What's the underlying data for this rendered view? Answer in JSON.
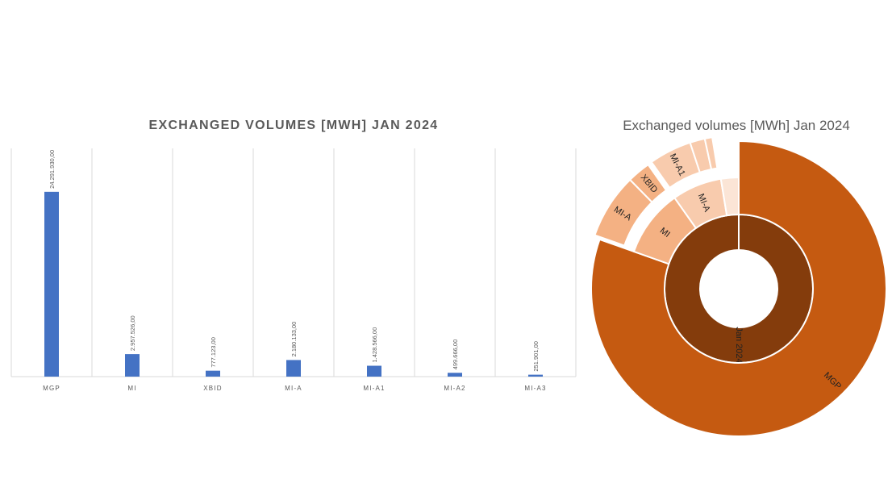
{
  "chart_data": [
    {
      "type": "bar",
      "title": "EXCHANGED VOLUMES [MWH] JAN 2024",
      "categories": [
        "MGP",
        "MI",
        "XBID",
        "MI-A",
        "MI-A1",
        "MI-A2",
        "MI-A3"
      ],
      "values": [
        24291930,
        2957526,
        777123,
        2180133,
        1428566,
        499666,
        251901
      ],
      "value_labels": [
        "24.291.930,00",
        "2.957.526,00",
        "777.123,00",
        "2.180.133,00",
        "1.428.566,00",
        "499.666,00",
        "251.901,00"
      ],
      "ylim": [
        0,
        30000000
      ],
      "grid": "vertical",
      "color": "#4472c4"
    },
    {
      "type": "sunburst",
      "title": "Exchanged volumes [MWh] Jan 2024",
      "root": "Jan 2024",
      "segments": [
        {
          "name": "MGP",
          "label": "MGP",
          "value": 24291930,
          "ring": 2,
          "color": "#c55a11"
        },
        {
          "name": "MI",
          "label": "MI",
          "value": 2957526,
          "ring": 2,
          "color": "#f4b183",
          "children": [
            {
              "name": "MI-A",
              "label": "MI-A",
              "value": 2180133,
              "color": "#f4b183"
            },
            {
              "name": "XBID",
              "label": "XBID",
              "value": 777123,
              "color": "#f4b183"
            }
          ]
        },
        {
          "name": "MI-A",
          "label": "MI-A",
          "value": 2180133,
          "ring": 2,
          "color": "#f8cbad",
          "children": [
            {
              "name": "MI-A1",
              "label": "MI-A1",
              "value": 1428566,
              "color": "#f8cbad"
            },
            {
              "name": "MI-A2",
              "label": "",
              "value": 499666,
              "color": "#f8cbad"
            },
            {
              "name": "MI-A3",
              "label": "",
              "value": 251901,
              "color": "#f8cbad"
            }
          ]
        },
        {
          "name": "XBID",
          "label": "",
          "value": 777123,
          "ring": 2,
          "color": "#fbe5d6"
        }
      ],
      "root_color": "#843c0c"
    }
  ]
}
